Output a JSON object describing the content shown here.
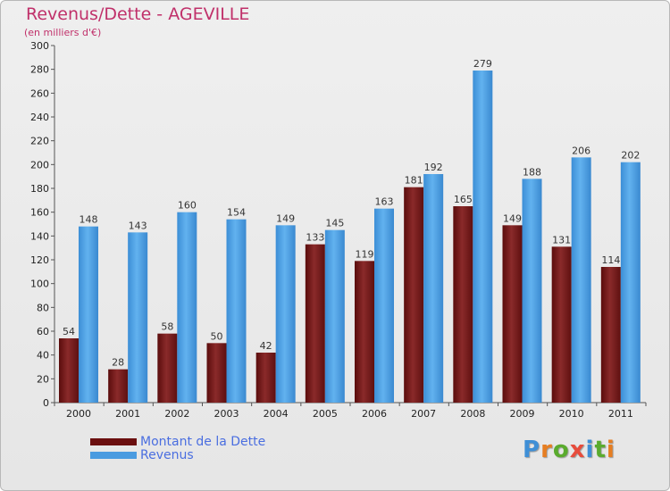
{
  "header": {
    "title": "Revenus/Dette - AGEVILLE",
    "subtitle": "(en milliers d'€)"
  },
  "chart_data": {
    "type": "bar",
    "title": "Revenus/Dette - AGEVILLE",
    "subtitle": "(en milliers d'€)",
    "categories": [
      "2000",
      "2001",
      "2002",
      "2003",
      "2004",
      "2005",
      "2006",
      "2007",
      "2008",
      "2009",
      "2010",
      "2011"
    ],
    "series": [
      {
        "name": "Montant de la Dette",
        "values": [
          54,
          28,
          58,
          50,
          42,
          133,
          119,
          181,
          165,
          149,
          131,
          114
        ]
      },
      {
        "name": "Revenus",
        "values": [
          148,
          143,
          160,
          154,
          149,
          145,
          163,
          192,
          279,
          188,
          206,
          202
        ]
      }
    ],
    "ylim": [
      0,
      300
    ],
    "yticks": [
      0,
      20,
      40,
      60,
      80,
      100,
      120,
      140,
      160,
      180,
      200,
      220,
      240,
      260,
      280,
      300
    ],
    "grid": false,
    "legend_position": "bottom-left",
    "colors": {
      "dette": "#7a1a1a",
      "revenus": "#4f9fe0"
    }
  },
  "legend": {
    "items": [
      {
        "label": "Montant de la Dette",
        "color": "#6b0f0f"
      },
      {
        "label": "Revenus",
        "color": "#4a9be0"
      }
    ]
  },
  "logo": {
    "letters": [
      "P",
      "r",
      "o",
      "x",
      "i",
      "t",
      "i"
    ],
    "colors": [
      "#3f8fd6",
      "#e67e22",
      "#5aab2e",
      "#e74c3c",
      "#3f8fd6",
      "#5aab2e",
      "#e67e22"
    ]
  }
}
